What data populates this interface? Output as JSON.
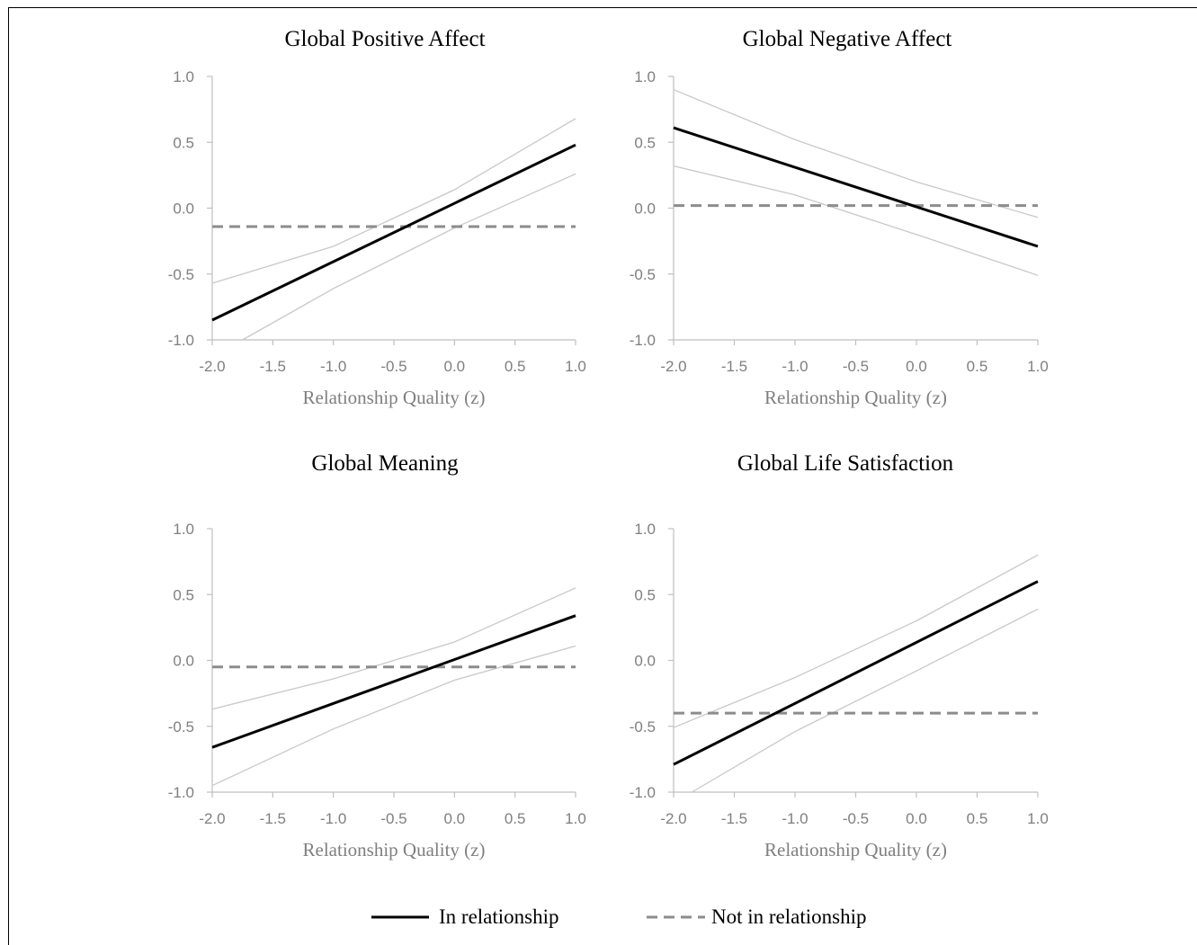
{
  "legend": {
    "in_relationship": "In relationship",
    "not_in_relationship": "Not in relationship"
  },
  "colors": {
    "in_relationship": "#000000",
    "not_in_relationship": "#8c8c8c",
    "confidence_band": "#c8c8c8",
    "axis": "#bfbfbf",
    "tick_text": "#7f7f7f"
  },
  "chart_data": [
    {
      "type": "line",
      "title": "Global Positive Affect",
      "xlabel": "Relationship Quality (z)",
      "ylabel": "",
      "xlim": [
        -2.0,
        1.0
      ],
      "ylim": [
        -1.0,
        1.0
      ],
      "x_ticks": [
        "-2.0",
        "-1.5",
        "-1.0",
        "-0.5",
        "0.0",
        "0.5",
        "1.0"
      ],
      "y_ticks": [
        "1.0",
        "0.5",
        "0.0",
        "-0.5",
        "-1.0"
      ],
      "grid": false,
      "series": [
        {
          "name": "In relationship",
          "style": "solid",
          "x": [
            -2.0,
            1.0
          ],
          "y": [
            -0.85,
            0.48
          ]
        },
        {
          "name": "Not in relationship",
          "style": "dashed",
          "x": [
            -2.0,
            1.0
          ],
          "y": [
            -0.14,
            -0.14
          ]
        },
        {
          "style": "band-upper",
          "x": [
            -2.0,
            -1.0,
            0.0,
            1.0
          ],
          "y": [
            -0.57,
            -0.29,
            0.14,
            0.68
          ]
        },
        {
          "style": "band-lower",
          "x": [
            -1.75,
            -1.0,
            0.0,
            1.0
          ],
          "y": [
            -1.0,
            -0.61,
            -0.15,
            0.26
          ]
        }
      ]
    },
    {
      "type": "line",
      "title": "Global Negative Affect",
      "xlabel": "Relationship Quality (z)",
      "ylabel": "",
      "xlim": [
        -2.0,
        1.0
      ],
      "ylim": [
        -1.0,
        1.0
      ],
      "x_ticks": [
        "-2.0",
        "-1.5",
        "-1.0",
        "-0.5",
        "0.0",
        "0.5",
        "1.0"
      ],
      "y_ticks": [
        "1.0",
        "0.5",
        "0.0",
        "-0.5",
        "-1.0"
      ],
      "grid": false,
      "series": [
        {
          "name": "In relationship",
          "style": "solid",
          "x": [
            -2.0,
            1.0
          ],
          "y": [
            0.61,
            -0.29
          ]
        },
        {
          "name": "Not in relationship",
          "style": "dashed",
          "x": [
            -2.0,
            1.0
          ],
          "y": [
            0.02,
            0.02
          ]
        },
        {
          "style": "band-upper",
          "x": [
            -2.0,
            -1.0,
            0.0,
            1.0
          ],
          "y": [
            0.9,
            0.52,
            0.2,
            -0.07
          ]
        },
        {
          "style": "band-lower",
          "x": [
            -2.0,
            -1.0,
            0.0,
            1.0
          ],
          "y": [
            0.32,
            0.1,
            -0.2,
            -0.51
          ]
        }
      ]
    },
    {
      "type": "line",
      "title": "Global Meaning",
      "xlabel": "Relationship Quality (z)",
      "ylabel": "",
      "xlim": [
        -2.0,
        1.0
      ],
      "ylim": [
        -1.0,
        1.0
      ],
      "x_ticks": [
        "-2.0",
        "-1.5",
        "-1.0",
        "-0.5",
        "0.0",
        "0.5",
        "1.0"
      ],
      "y_ticks": [
        "1.0",
        "0.5",
        "0.0",
        "-0.5",
        "-1.0"
      ],
      "grid": false,
      "series": [
        {
          "name": "In relationship",
          "style": "solid",
          "x": [
            -2.0,
            1.0
          ],
          "y": [
            -0.66,
            0.34
          ]
        },
        {
          "name": "Not in relationship",
          "style": "dashed",
          "x": [
            -2.0,
            1.0
          ],
          "y": [
            -0.05,
            -0.05
          ]
        },
        {
          "style": "band-upper",
          "x": [
            -2.0,
            -1.0,
            0.0,
            1.0
          ],
          "y": [
            -0.37,
            -0.14,
            0.14,
            0.55
          ]
        },
        {
          "style": "band-lower",
          "x": [
            -2.0,
            -1.0,
            0.0,
            1.0
          ],
          "y": [
            -0.95,
            -0.52,
            -0.15,
            0.11
          ]
        }
      ]
    },
    {
      "type": "line",
      "title": "Global Life Satisfaction",
      "xlabel": "Relationship Quality (z)",
      "ylabel": "",
      "xlim": [
        -2.0,
        1.0
      ],
      "ylim": [
        -1.0,
        1.0
      ],
      "x_ticks": [
        "-2.0",
        "-1.5",
        "-1.0",
        "-0.5",
        "0.0",
        "0.5",
        "1.0"
      ],
      "y_ticks": [
        "1.0",
        "0.5",
        "0.0",
        "-0.5",
        "-1.0"
      ],
      "grid": false,
      "series": [
        {
          "name": "In relationship",
          "style": "solid",
          "x": [
            -2.0,
            1.0
          ],
          "y": [
            -0.79,
            0.6
          ]
        },
        {
          "name": "Not in relationship",
          "style": "dashed",
          "x": [
            -2.0,
            1.0
          ],
          "y": [
            -0.4,
            -0.4
          ]
        },
        {
          "style": "band-upper",
          "x": [
            -2.0,
            -1.0,
            0.0,
            1.0
          ],
          "y": [
            -0.51,
            -0.13,
            0.3,
            0.8
          ]
        },
        {
          "style": "band-lower",
          "x": [
            -1.85,
            -1.0,
            0.0,
            1.0
          ],
          "y": [
            -1.0,
            -0.54,
            -0.08,
            0.39
          ]
        }
      ]
    }
  ]
}
